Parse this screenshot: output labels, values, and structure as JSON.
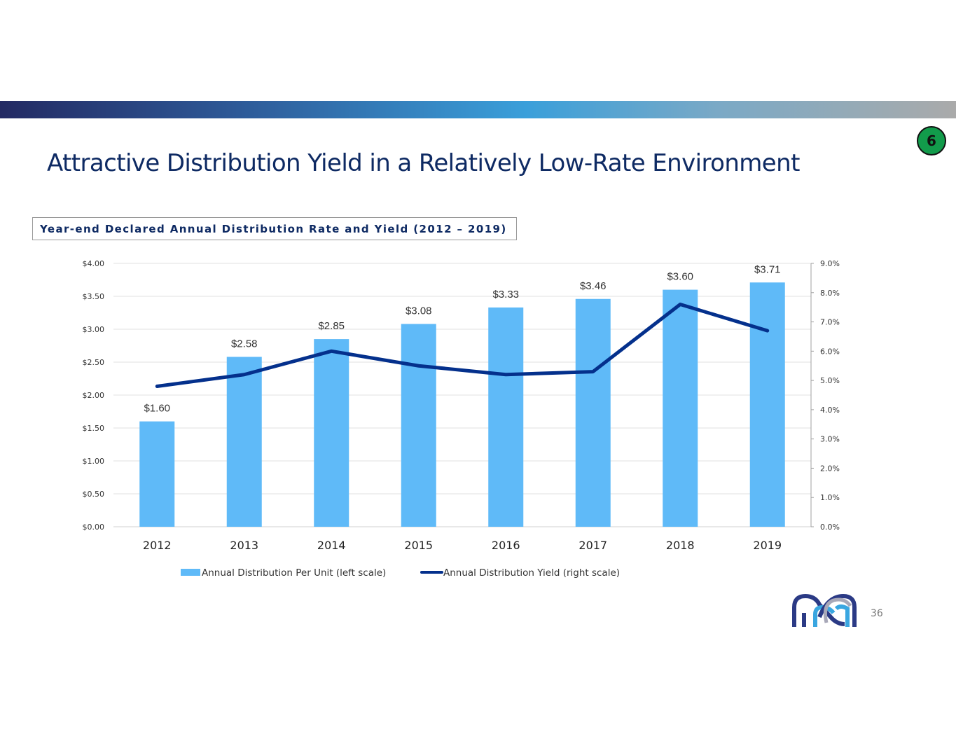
{
  "slide": {
    "title": "Attractive Distribution Yield in a Relatively Low-Rate Environment",
    "section_badge": "6",
    "page_number": "36",
    "logo_icon": "company-infinity-logo"
  },
  "colors": {
    "bar": "#5fbaf8",
    "line": "#04308c",
    "title": "#0e2a63",
    "badge": "#129b4b"
  },
  "chart_data": {
    "type": "bar",
    "title": "Year-end Declared Annual Distribution Rate and Yield (2012 – 2019)",
    "categories": [
      "2012",
      "2013",
      "2014",
      "2015",
      "2016",
      "2017",
      "2018",
      "2019"
    ],
    "series": [
      {
        "name": "Annual Distribution Per Unit (left scale)",
        "type": "bar",
        "axis": "left",
        "values": [
          1.6,
          2.58,
          2.85,
          3.08,
          3.33,
          3.46,
          3.6,
          3.71
        ],
        "labels": [
          "$1.60",
          "$2.58",
          "$2.85",
          "$3.08",
          "$3.33",
          "$3.46",
          "$3.60",
          "$3.71"
        ]
      },
      {
        "name": "Annual Distribution Yield (right scale)",
        "type": "line",
        "axis": "right",
        "values": [
          4.8,
          5.2,
          6.0,
          5.5,
          5.2,
          5.3,
          7.6,
          6.7
        ]
      }
    ],
    "left_axis": {
      "ylim": [
        0,
        4
      ],
      "ticks": [
        "$0.00",
        "$0.50",
        "$1.00",
        "$1.50",
        "$2.00",
        "$2.50",
        "$3.00",
        "$3.50",
        "$4.00"
      ]
    },
    "right_axis": {
      "ylim": [
        0,
        9
      ],
      "ticks": [
        "0.0%",
        "1.0%",
        "2.0%",
        "3.0%",
        "4.0%",
        "5.0%",
        "6.0%",
        "7.0%",
        "8.0%",
        "9.0%"
      ]
    },
    "xlabel": "",
    "grid": true,
    "legend": "bottom-center"
  }
}
